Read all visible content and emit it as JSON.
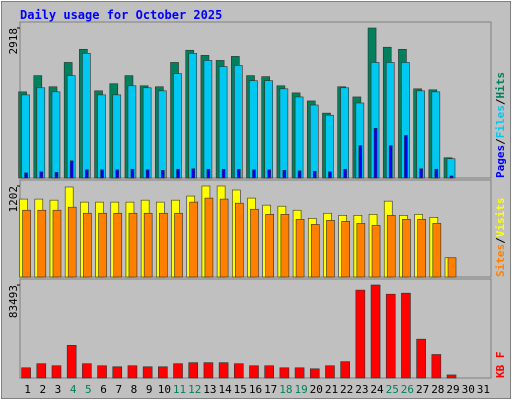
{
  "title": "Daily usage for October 2025",
  "chart_data": [
    {
      "type": "bar",
      "ylim": [
        0,
        2918
      ],
      "yticks": [
        2918
      ],
      "series": [
        {
          "name": "Hits",
          "color": "#00805c",
          "values": [
            1676,
            1992,
            1775,
            2248,
            2504,
            1696,
            1834,
            1992,
            1794,
            1775,
            2248,
            2485,
            2386,
            2287,
            2366,
            1992,
            1972,
            1794,
            1656,
            1499,
            1262,
            1775,
            1577,
            2918,
            2544,
            2504,
            1735,
            1716,
            394,
            0,
            0
          ]
        },
        {
          "name": "Files",
          "color": "#00c8f0",
          "values": [
            1617,
            1755,
            1676,
            1992,
            2425,
            1617,
            1617,
            1794,
            1755,
            1696,
            2031,
            2425,
            2287,
            2169,
            2189,
            1893,
            1893,
            1735,
            1577,
            1420,
            1222,
            1755,
            1459,
            2248,
            2248,
            2248,
            1696,
            1676,
            375,
            0,
            0
          ]
        },
        {
          "name": "Pages",
          "color": "#0000ff",
          "values": [
            100,
            120,
            110,
            335,
            160,
            160,
            160,
            170,
            160,
            150,
            170,
            180,
            170,
            170,
            170,
            160,
            160,
            150,
            140,
            130,
            120,
            170,
            630,
            966,
            630,
            828,
            180,
            170,
            40,
            0,
            0
          ]
        }
      ]
    },
    {
      "type": "bar",
      "ylim": [
        0,
        1202
      ],
      "yticks": [
        1202
      ],
      "series": [
        {
          "name": "Visits",
          "color": "#ffff00",
          "values": [
            1029,
            1029,
            1015,
            1189,
            989,
            989,
            989,
            989,
            1015,
            989,
            1015,
            1069,
            1202,
            1202,
            1149,
            1042,
            949,
            935,
            882,
            775,
            842,
            815,
            815,
            828,
            1002,
            815,
            828,
            788,
            254,
            0,
            0
          ]
        },
        {
          "name": "Sites",
          "color": "#ff8000",
          "values": [
            882,
            882,
            882,
            922,
            842,
            842,
            842,
            842,
            842,
            842,
            842,
            989,
            1042,
            1029,
            975,
            895,
            828,
            828,
            762,
            695,
            748,
            735,
            708,
            681,
            815,
            762,
            762,
            708,
            254,
            0,
            0
          ]
        }
      ]
    },
    {
      "type": "bar",
      "ylim": [
        0,
        83493
      ],
      "yticks": [
        83493
      ],
      "categories": [
        "1",
        "2",
        "3",
        "4",
        "5",
        "6",
        "7",
        "8",
        "9",
        "10",
        "11",
        "12",
        "13",
        "14",
        "15",
        "16",
        "17",
        "18",
        "19",
        "20",
        "21",
        "22",
        "23",
        "24",
        "25",
        "26",
        "27",
        "28",
        "29",
        "30",
        "31"
      ],
      "highlight": [
        3,
        4,
        10,
        11,
        17,
        18,
        24,
        25
      ],
      "label_color": "#000000",
      "highlight_color": "#00805c",
      "series": [
        {
          "name": "KB F",
          "color": "#ff0000",
          "values": [
            9175,
            12845,
            11010,
            29360,
            12845,
            11010,
            10093,
            11010,
            10093,
            10093,
            12845,
            13763,
            13763,
            13763,
            12845,
            11010,
            11010,
            9175,
            9175,
            8258,
            11010,
            14680,
            78905,
            83493,
            75235,
            76153,
            34865,
            21103,
            2753,
            0,
            0
          ]
        }
      ]
    }
  ]
}
